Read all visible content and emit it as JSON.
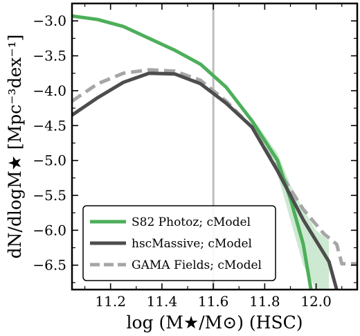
{
  "chart_data": {
    "type": "line",
    "xlabel": "log (M★/M⊙) (HSC)",
    "ylabel": "dN/dlogM★ [Mpc⁻³dex⁻¹]",
    "xlim": [
      11.05,
      12.16
    ],
    "ylim": [
      -6.85,
      -2.75
    ],
    "x_ticks": [
      "11.2",
      "11.4",
      "11.6",
      "11.8",
      "12.0"
    ],
    "y_ticks": [
      "−3.0",
      "−3.5",
      "−4.0",
      "−4.5",
      "−5.0",
      "−5.5",
      "−6.0",
      "−6.5"
    ],
    "vline_x": 11.6,
    "legend_position": "lower-left",
    "series": [
      {
        "name": "S82 Photoz; cModel",
        "color": "#4daf5a",
        "style": "solid",
        "points": [
          [
            11.05,
            -2.93
          ],
          [
            11.15,
            -2.98
          ],
          [
            11.25,
            -3.08
          ],
          [
            11.35,
            -3.25
          ],
          [
            11.45,
            -3.42
          ],
          [
            11.55,
            -3.62
          ],
          [
            11.65,
            -3.95
          ],
          [
            11.75,
            -4.43
          ],
          [
            11.85,
            -5.0
          ],
          [
            11.9,
            -5.55
          ],
          [
            11.95,
            -6.2
          ],
          [
            11.98,
            -6.85
          ]
        ],
        "band_upper": [
          -4.38,
          -4.9,
          -5.35,
          -5.7,
          -6.0,
          -6.15
        ],
        "band_lower": [
          -4.48,
          -5.2,
          -5.85,
          -6.5,
          -6.85,
          -6.85
        ],
        "band_x": [
          11.75,
          11.85,
          11.9,
          11.95,
          12.0,
          12.05
        ]
      },
      {
        "name": "hscMassive; cModel",
        "color": "#4d4d4d",
        "style": "solid",
        "points": [
          [
            11.05,
            -4.35
          ],
          [
            11.15,
            -4.1
          ],
          [
            11.25,
            -3.88
          ],
          [
            11.35,
            -3.75
          ],
          [
            11.45,
            -3.76
          ],
          [
            11.55,
            -3.9
          ],
          [
            11.65,
            -4.18
          ],
          [
            11.75,
            -4.52
          ],
          [
            11.85,
            -5.15
          ],
          [
            11.95,
            -5.85
          ],
          [
            12.05,
            -6.45
          ],
          [
            12.08,
            -6.85
          ]
        ]
      },
      {
        "name": "GAMA Fields; cModel",
        "color": "#a6a6a6",
        "style": "dashed",
        "points": [
          [
            11.05,
            -4.15
          ],
          [
            11.15,
            -3.9
          ],
          [
            11.25,
            -3.75
          ],
          [
            11.35,
            -3.7
          ],
          [
            11.45,
            -3.72
          ],
          [
            11.55,
            -3.85
          ],
          [
            11.65,
            -4.15
          ],
          [
            11.75,
            -4.52
          ],
          [
            11.85,
            -5.12
          ],
          [
            11.95,
            -5.7
          ],
          [
            12.03,
            -6.05
          ],
          [
            12.08,
            -6.2
          ],
          [
            12.1,
            -6.48
          ],
          [
            12.16,
            -6.48
          ]
        ]
      }
    ]
  }
}
